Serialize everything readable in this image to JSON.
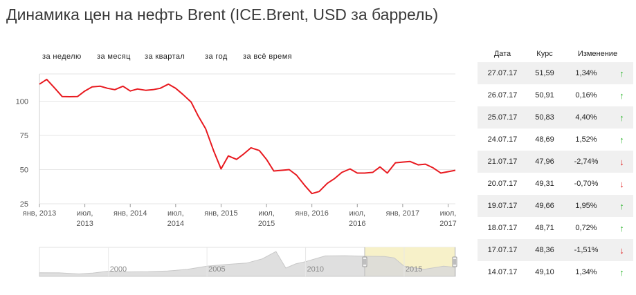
{
  "title": "Динамика цен на нефть Brent (ICE.Brent, USD за баррель)",
  "range_tabs": [
    "за неделю",
    "за месяц",
    "за квартал",
    "за год",
    "за всё время"
  ],
  "colors": {
    "line": "#e8191f",
    "grid": "#e6e6e6",
    "up": "#2bb52b",
    "down": "#e02020",
    "navigator_fill": "#d9d9d9",
    "navigator_mask": "#f7f1c9"
  },
  "chart_data": {
    "type": "line",
    "title": "Динамика цен на нефть Brent (ICE.Brent, USD за баррель)",
    "ylim": [
      25,
      120
    ],
    "yticks": [
      25,
      50,
      75,
      100
    ],
    "x_range": [
      2013.0,
      2017.58
    ],
    "xticks": [
      {
        "x": 2013.0,
        "line1": "янв, 2013",
        "line2": ""
      },
      {
        "x": 2013.5,
        "line1": "июл,",
        "line2": "2013"
      },
      {
        "x": 2014.0,
        "line1": "янв, 2014",
        "line2": ""
      },
      {
        "x": 2014.5,
        "line1": "июл,",
        "line2": "2014"
      },
      {
        "x": 2015.0,
        "line1": "янв, 2015",
        "line2": ""
      },
      {
        "x": 2015.5,
        "line1": "июл,",
        "line2": "2015"
      },
      {
        "x": 2016.0,
        "line1": "янв, 2016",
        "line2": ""
      },
      {
        "x": 2016.5,
        "line1": "июл,",
        "line2": "2016"
      },
      {
        "x": 2017.0,
        "line1": "янв, 2017",
        "line2": ""
      },
      {
        "x": 2017.5,
        "line1": "июл,",
        "line2": "2017"
      }
    ],
    "series": [
      {
        "name": "ICE.Brent",
        "x": [
          2013.0,
          2013.08,
          2013.17,
          2013.25,
          2013.33,
          2013.42,
          2013.5,
          2013.58,
          2013.67,
          2013.75,
          2013.83,
          2013.92,
          2014.0,
          2014.08,
          2014.17,
          2014.25,
          2014.33,
          2014.42,
          2014.5,
          2014.58,
          2014.67,
          2014.75,
          2014.83,
          2014.92,
          2015.0,
          2015.08,
          2015.17,
          2015.25,
          2015.33,
          2015.42,
          2015.5,
          2015.58,
          2015.67,
          2015.75,
          2015.83,
          2015.92,
          2016.0,
          2016.08,
          2016.17,
          2016.25,
          2016.33,
          2016.42,
          2016.5,
          2016.58,
          2016.67,
          2016.75,
          2016.83,
          2016.92,
          2017.0,
          2017.08,
          2017.17,
          2017.25,
          2017.33,
          2017.42,
          2017.5,
          2017.58
        ],
        "values": [
          112.5,
          116.0,
          109.5,
          103.5,
          103.3,
          103.5,
          107.5,
          110.5,
          111.0,
          109.5,
          108.5,
          111.0,
          107.5,
          109.0,
          108.0,
          108.5,
          109.5,
          112.5,
          109.5,
          105.0,
          99.5,
          89.0,
          80.0,
          63.5,
          50.5,
          60.0,
          57.5,
          61.5,
          66.0,
          64.0,
          57.5,
          49.0,
          49.5,
          50.0,
          46.0,
          38.5,
          32.5,
          34.0,
          40.0,
          43.5,
          48.0,
          50.5,
          47.5,
          47.5,
          48.0,
          52.0,
          47.5,
          55.0,
          55.5,
          56.0,
          53.5,
          54.0,
          51.5,
          47.5,
          48.5,
          49.5
        ]
      }
    ],
    "navigator": {
      "labels": [
        {
          "x": 2000,
          "text": "2000"
        },
        {
          "x": 2005,
          "text": "2005"
        },
        {
          "x": 2010,
          "text": "2010"
        },
        {
          "x": 2015,
          "text": "2015"
        }
      ],
      "x_range": [
        1996.5,
        2017.6
      ],
      "selection": [
        2013.0,
        2017.58
      ],
      "x": [
        1996.5,
        1997.5,
        1998.5,
        1999.2,
        2000.0,
        2001.0,
        2002.0,
        2003.0,
        2004.0,
        2005.0,
        2006.0,
        2007.0,
        2007.8,
        2008.5,
        2009.0,
        2009.5,
        2010.0,
        2011.0,
        2012.0,
        2013.0,
        2014.0,
        2014.5,
        2015.0,
        2016.0,
        2017.0,
        2017.6
      ],
      "values": [
        20,
        19,
        13,
        18,
        28,
        24,
        25,
        29,
        38,
        55,
        65,
        72,
        95,
        135,
        45,
        68,
        80,
        111,
        112,
        109,
        108,
        100,
        55,
        38,
        55,
        49
      ]
    }
  },
  "table": {
    "headers": {
      "date": "Дата",
      "rate": "Курс",
      "change": "Изменение"
    },
    "rows": [
      {
        "date": "27.07.17",
        "rate": "51,59",
        "change": "1,34%",
        "dir": "up",
        "arrow": "↑"
      },
      {
        "date": "26.07.17",
        "rate": "50,91",
        "change": "0,16%",
        "dir": "up",
        "arrow": "↑"
      },
      {
        "date": "25.07.17",
        "rate": "50,83",
        "change": "4,40%",
        "dir": "up",
        "arrow": "↑"
      },
      {
        "date": "24.07.17",
        "rate": "48,69",
        "change": "1,52%",
        "dir": "up",
        "arrow": "↑"
      },
      {
        "date": "21.07.17",
        "rate": "47,96",
        "change": "-2,74%",
        "dir": "down",
        "arrow": "↓"
      },
      {
        "date": "20.07.17",
        "rate": "49,31",
        "change": "-0,70%",
        "dir": "down",
        "arrow": "↓"
      },
      {
        "date": "19.07.17",
        "rate": "49,66",
        "change": "1,95%",
        "dir": "up",
        "arrow": "↑"
      },
      {
        "date": "18.07.17",
        "rate": "48,71",
        "change": "0,72%",
        "dir": "up",
        "arrow": "↑"
      },
      {
        "date": "17.07.17",
        "rate": "48,36",
        "change": "-1,51%",
        "dir": "down",
        "arrow": "↓"
      },
      {
        "date": "14.07.17",
        "rate": "49,10",
        "change": "1,34%",
        "dir": "up",
        "arrow": "↑"
      }
    ]
  }
}
